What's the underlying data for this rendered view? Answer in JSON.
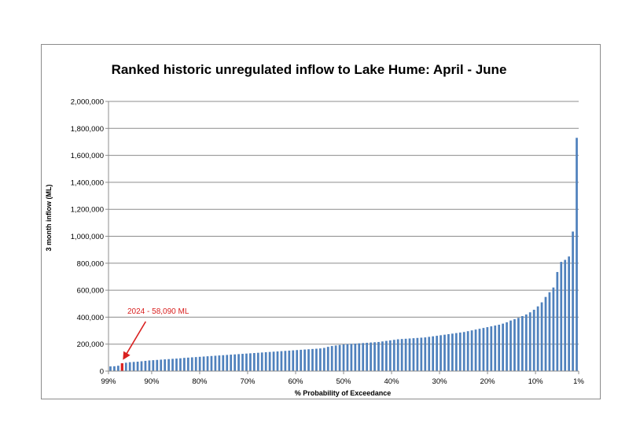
{
  "chart_data": {
    "type": "bar",
    "title": "Ranked historic unregulated inflow to Lake Hume: April - June",
    "xlabel": "% Probability of Exceedance",
    "ylabel": "3 month inflow (ML)",
    "ylim": [
      0,
      2000000
    ],
    "yticks": [
      0,
      200000,
      400000,
      600000,
      800000,
      1000000,
      1200000,
      1400000,
      1600000,
      1800000,
      2000000
    ],
    "ytick_labels": [
      "0",
      "200,000",
      "400,000",
      "600,000",
      "800,000",
      "1,000,000",
      "1,200,000",
      "1,400,000",
      "1,600,000",
      "1,800,000",
      "2,000,000"
    ],
    "xticks": [
      99,
      90,
      80,
      70,
      60,
      50,
      40,
      30,
      20,
      10,
      1
    ],
    "xtick_labels": [
      "99%",
      "90%",
      "80%",
      "70%",
      "60%",
      "50%",
      "40%",
      "30%",
      "20%",
      "10%",
      "1%"
    ],
    "grid": true,
    "bar_color": "#4f81bd",
    "highlight_color": "#d9201f",
    "values": [
      35000,
      36000,
      40000,
      58090,
      62000,
      66000,
      68000,
      70000,
      73000,
      76000,
      79000,
      81000,
      83000,
      85000,
      87000,
      89000,
      91000,
      93000,
      95000,
      98000,
      100000,
      102000,
      104000,
      106000,
      108000,
      110000,
      112000,
      114000,
      116000,
      118000,
      120000,
      122000,
      124000,
      126000,
      128000,
      130000,
      132000,
      134000,
      136000,
      138000,
      140000,
      142000,
      144000,
      146000,
      148000,
      150000,
      152000,
      154000,
      156000,
      158000,
      160000,
      162000,
      164000,
      166000,
      168000,
      172000,
      180000,
      186000,
      190000,
      194000,
      198000,
      200000,
      202000,
      204000,
      206000,
      208000,
      210000,
      212000,
      214000,
      216000,
      220000,
      224000,
      228000,
      232000,
      236000,
      238000,
      240000,
      242000,
      244000,
      246000,
      248000,
      250000,
      254000,
      258000,
      262000,
      266000,
      270000,
      274000,
      278000,
      282000,
      286000,
      290000,
      296000,
      302000,
      308000,
      314000,
      320000,
      326000,
      332000,
      338000,
      344000,
      352000,
      362000,
      375000,
      385000,
      395000,
      408000,
      420000,
      436000,
      455000,
      480000,
      510000,
      550000,
      585000,
      620000,
      735000,
      810000,
      825000,
      850000,
      1035000,
      1730000
    ],
    "highlight_index": 3,
    "annotation": {
      "text": "2024 - 58,090  ML",
      "target_index": 3
    }
  }
}
